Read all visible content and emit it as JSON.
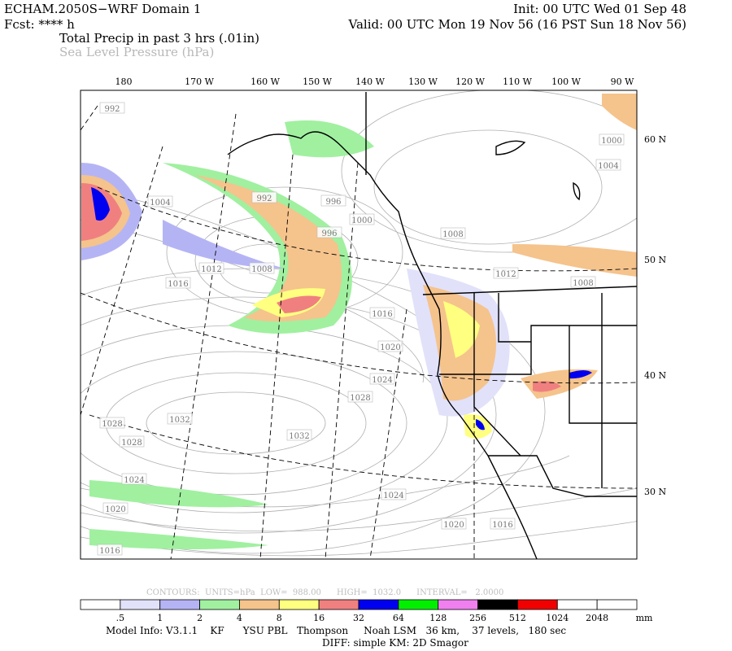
{
  "header": {
    "model": "ECHAM.2050S−WRF Domain 1",
    "forecast": "Fcst: **** h",
    "init": "Init: 00 UTC Wed 01 Sep 48",
    "valid": "Valid: 00 UTC Mon 19 Nov 56 (16 PST Sun 18 Nov 56)",
    "field": "Total Precip in past 3 hrs (.01in)",
    "contour_field": "Sea Level Pressure (hPa)"
  },
  "map": {
    "longitudes": [
      "180",
      "170 W",
      "160 W",
      "150 W",
      "140 W",
      "130 W",
      "120 W",
      "110 W",
      "100 W",
      "90 W"
    ],
    "latitudes": [
      "60 N",
      "50 N",
      "40 N",
      "30 N"
    ],
    "contour_labels": [
      "992",
      "1004",
      "992",
      "996",
      "1000",
      "996",
      "1012",
      "1008",
      "1016",
      "1008",
      "1012",
      "1008",
      "1000",
      "1004",
      "1016",
      "1020",
      "1024",
      "1028",
      "1032",
      "1032",
      "1028",
      "1028",
      "1024",
      "1020",
      "1016",
      "1024",
      "1020",
      "1016"
    ]
  },
  "footer": {
    "contour_info": "CONTOURS:  UNITS=hPa  LOW=  988.00      HIGH=  1032.0      INTERVAL=   2.0000",
    "colorbar_labels": [
      ".5",
      "1",
      "2",
      "4",
      "8",
      "16",
      "32",
      "64",
      "128",
      "256",
      "512",
      "1024",
      "2048"
    ],
    "colorbar_unit": "mm",
    "model_info": "Model Info: V3.1.1    KF      YSU PBL   Thompson     Noah LSM   36 km,    37 levels,   180 sec",
    "diff_info": "DIFF: simple KM: 2D Smagor"
  }
}
